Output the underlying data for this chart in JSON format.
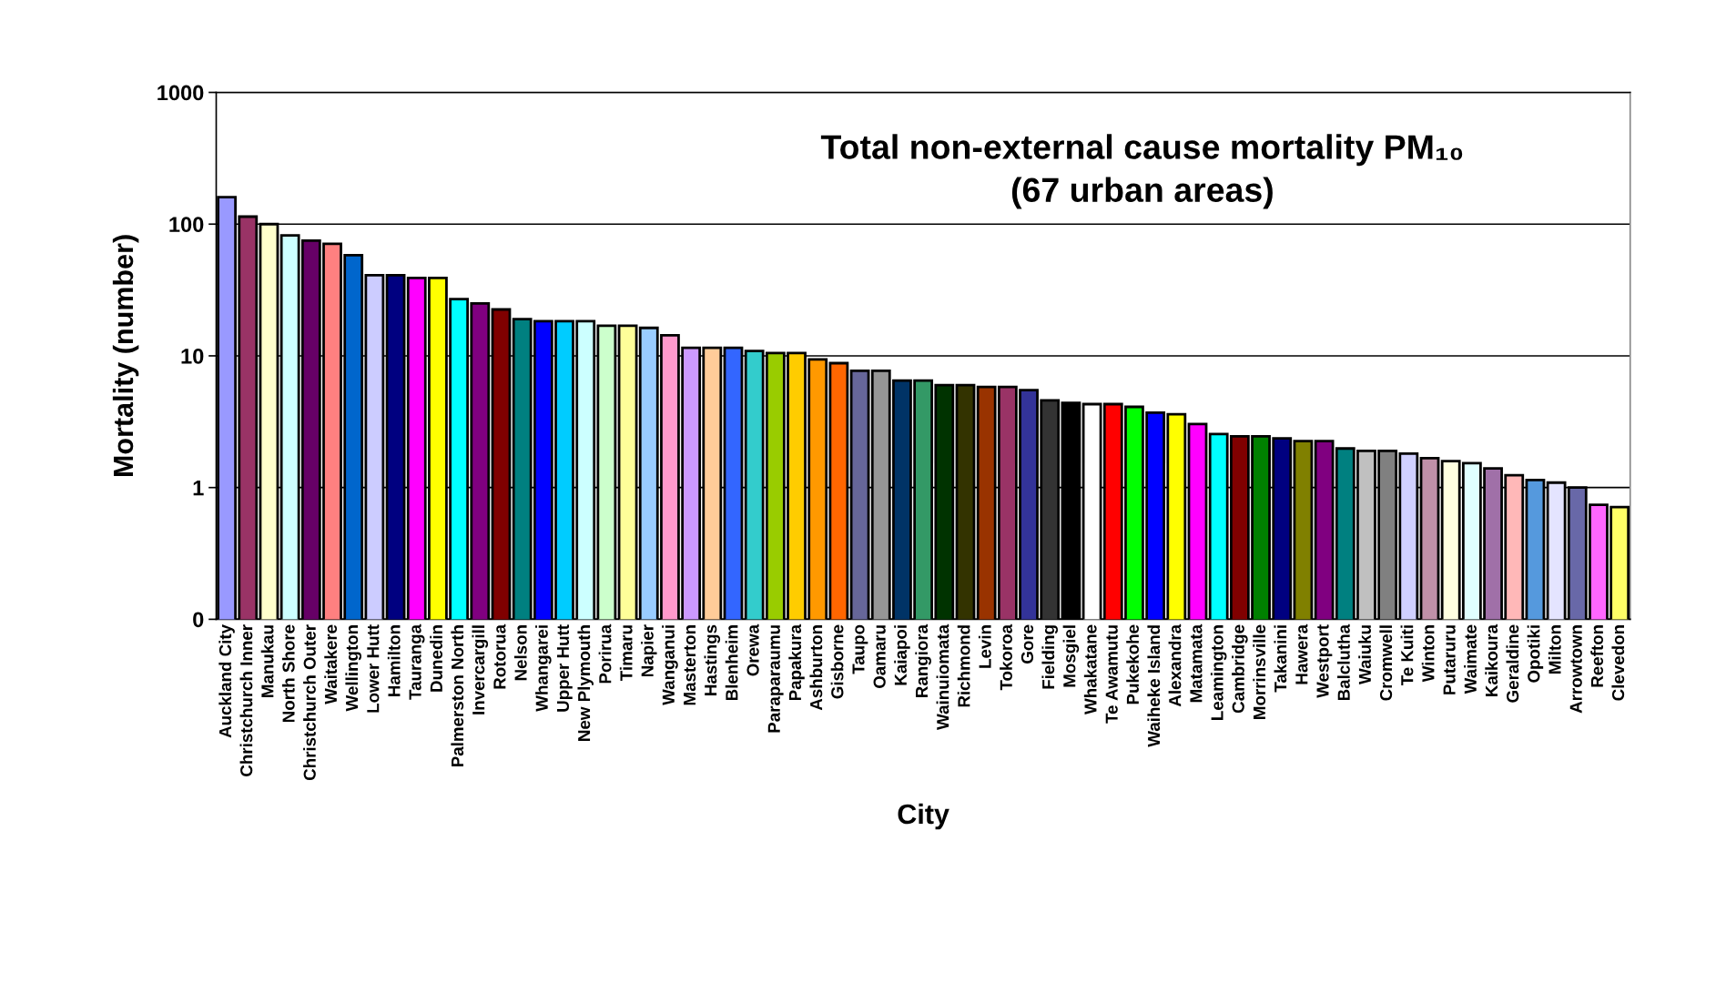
{
  "chart_data": {
    "type": "bar",
    "title": "Total non-external cause mortality PM₁₀\n(67 urban areas)",
    "xlabel": "City",
    "ylabel": "Mortality (number)",
    "categories": [
      "Auckland City",
      "Christchurch Inner",
      "Manukau",
      "North Shore",
      "Christchurch Outer",
      "Waitakere",
      "Wellington",
      "Lower Hutt",
      "Hamilton",
      "Tauranga",
      "Dunedin",
      "Palmerston North",
      "Invercargill",
      "Rotorua",
      "Nelson",
      "Whangarei",
      "Upper Hutt",
      "New Plymouth",
      "Porirua",
      "Timaru",
      "Napier",
      "Wanganui",
      "Masterton",
      "Hastings",
      "Blenheim",
      "Orewa",
      "Paraparaumu",
      "Papakura",
      "Ashburton",
      "Gisborne",
      "Taupo",
      "Oamaru",
      "Kaiapoi",
      "Rangiora",
      "Wainuiomata",
      "Richmond",
      "Levin",
      "Tokoroa",
      "Gore",
      "Fielding",
      "Mosgiel",
      "Whakatane",
      "Te Awamutu",
      "Pukekohe",
      "Waiheke Island",
      "Alexandra",
      "Matamata",
      "Leamington",
      "Cambridge",
      "Morrinsville",
      "Takanini",
      "Hawera",
      "Westport",
      "Balclutha",
      "Waiuku",
      "Cromwell",
      "Te Kuiti",
      "Winton",
      "Putaruru",
      "Waimate",
      "Kaikoura",
      "Geraldine",
      "Opotiki",
      "Milton",
      "Arrowtown",
      "Reefton",
      "Clevedon"
    ],
    "values": [
      160,
      114,
      100,
      82,
      75,
      71,
      58,
      41,
      41,
      39,
      39,
      27,
      25,
      22.5,
      19,
      18.3,
      18.3,
      18.3,
      16.9,
      16.9,
      16.3,
      14.3,
      11.5,
      11.5,
      11.5,
      10.9,
      10.5,
      10.5,
      9.4,
      8.8,
      7.7,
      7.7,
      6.5,
      6.5,
      6.0,
      6.0,
      5.8,
      5.8,
      5.5,
      4.6,
      4.4,
      4.3,
      4.3,
      4.1,
      3.7,
      3.6,
      3.04,
      2.55,
      2.45,
      2.45,
      2.36,
      2.25,
      2.25,
      1.98,
      1.9,
      1.9,
      1.81,
      1.67,
      1.59,
      1.53,
      1.4,
      1.24,
      1.14,
      1.09,
      1.0,
      0.74,
      0.71
    ],
    "colors": [
      "#9999ff",
      "#993366",
      "#ffffcc",
      "#ccffff",
      "#660066",
      "#ff8080",
      "#0066cc",
      "#ccccff",
      "#000080",
      "#ff00ff",
      "#ffff00",
      "#00ffff",
      "#800080",
      "#800000",
      "#008080",
      "#0000ff",
      "#00ccff",
      "#ccffff",
      "#ccffcc",
      "#ffff99",
      "#99ccff",
      "#ff99cc",
      "#cc99ff",
      "#ffcc99",
      "#3366ff",
      "#33cccc",
      "#99cc00",
      "#ffcc00",
      "#ff9900",
      "#ff6600",
      "#666699",
      "#969696",
      "#003366",
      "#339966",
      "#003300",
      "#333300",
      "#993300",
      "#993366",
      "#333399",
      "#333333",
      "#000000",
      "#ffffff",
      "#ff0000",
      "#00ff00",
      "#0000ff",
      "#ffff00",
      "#ff00ff",
      "#00ffff",
      "#800000",
      "#008000",
      "#000080",
      "#808000",
      "#800080",
      "#008080",
      "#c0c0c0",
      "#808080",
      "#d0d0ff",
      "#c090a8",
      "#ffffe0",
      "#e0ffff",
      "#a070a8",
      "#ffb8b8",
      "#5599dd",
      "#e4e4ff",
      "#6868a8",
      "#ff66ff",
      "#ffff66"
    ],
    "log": true,
    "ylim": [
      0.1,
      1000
    ],
    "yticks": [
      {
        "value": 0.1,
        "label": "0"
      },
      1,
      10,
      100,
      1000
    ],
    "grid": "y",
    "legend": false
  }
}
